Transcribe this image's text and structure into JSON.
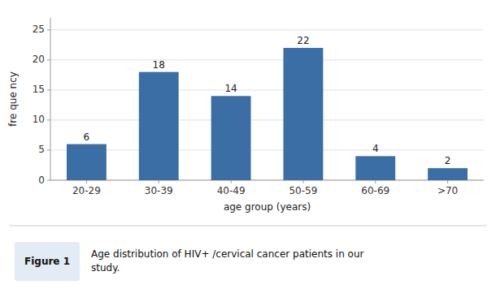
{
  "chart_data": {
    "type": "bar",
    "categories": [
      "20-29",
      "30-39",
      "40-49",
      "50-59",
      "60-69",
      ">70"
    ],
    "values": [
      6,
      18,
      14,
      22,
      4,
      2
    ],
    "color": "#3A6EA5",
    "xlabel": "age group (years)",
    "ylabel": "fre que ncy",
    "ylim": [
      0,
      27
    ],
    "yticks": [
      0,
      5,
      10,
      15,
      20,
      25
    ],
    "grid": true,
    "data_labels": true,
    "annotations": [
      "Figure 1",
      "Age distribution of HIV+ /cervical cancer patients in our\nstudy."
    ]
  }
}
